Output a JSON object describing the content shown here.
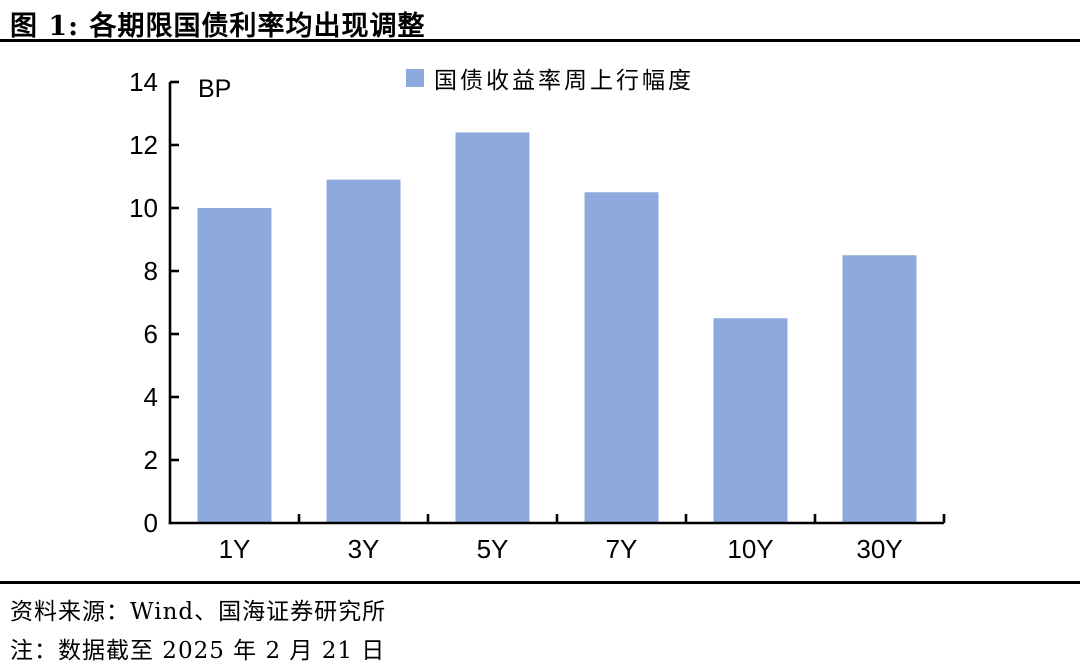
{
  "title": "图 1:  各期限国债利率均出现调整",
  "source_line": "资料来源：Wind、国海证券研究所",
  "note_line": "注：数据截至 2025 年 2 月 21 日",
  "colors": {
    "bar": "#8EA9DB",
    "axis": "#000000",
    "text": "#000000",
    "divider": "#000000",
    "background": "#FFFFFF"
  },
  "chart_data": {
    "type": "bar",
    "title": "",
    "unit_label": "BP",
    "legend": [
      "国债收益率周上行幅度"
    ],
    "legend_position": "top-center",
    "categories": [
      "1Y",
      "3Y",
      "5Y",
      "7Y",
      "10Y",
      "30Y"
    ],
    "values": [
      10.0,
      10.9,
      12.4,
      10.5,
      6.5,
      8.5
    ],
    "xlabel": "",
    "ylabel": "BP",
    "ylim": [
      0,
      14
    ],
    "ytick_step": 2,
    "yticks": [
      0,
      2,
      4,
      6,
      8,
      10,
      12,
      14
    ],
    "grid": false,
    "bar_color": "#8EA9DB",
    "axis_color": "#000000"
  }
}
